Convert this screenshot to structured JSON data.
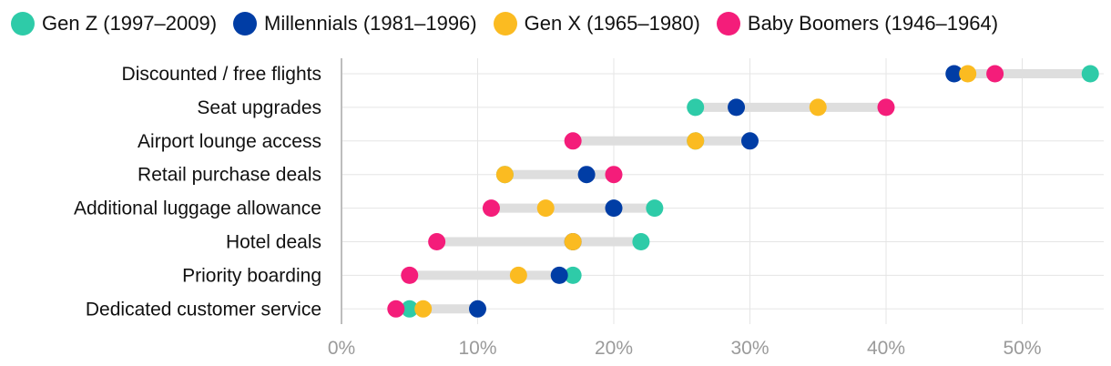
{
  "chart_data": {
    "type": "dot-range",
    "x_label_format": "percent",
    "xlim": [
      0,
      56
    ],
    "xticks": [
      0,
      10,
      20,
      30,
      40,
      50
    ],
    "xtick_labels": [
      "0%",
      "10%",
      "20%",
      "30%",
      "40%",
      "50%"
    ],
    "categories": [
      "Discounted / free flights",
      "Seat upgrades",
      "Airport lounge access",
      "Retail purchase deals",
      "Additional luggage allowance",
      "Hotel deals",
      "Priority boarding",
      "Dedicated customer service"
    ],
    "series": [
      {
        "name": "Gen Z (1997–2009)",
        "color": "#2ecba8",
        "values": [
          55,
          26,
          26,
          12,
          23,
          22,
          17,
          5
        ]
      },
      {
        "name": "Millennials (1981–1996)",
        "color": "#003da5",
        "values": [
          45,
          29,
          30,
          18,
          20,
          17,
          16,
          10
        ]
      },
      {
        "name": "Gen X (1965–1980)",
        "color": "#fbbb21",
        "values": [
          46,
          35,
          26,
          12,
          15,
          17,
          13,
          6
        ]
      },
      {
        "name": "Baby Boomers (1946–1964)",
        "color": "#f41d7a",
        "values": [
          48,
          40,
          17,
          20,
          11,
          7,
          5,
          4
        ]
      }
    ]
  }
}
